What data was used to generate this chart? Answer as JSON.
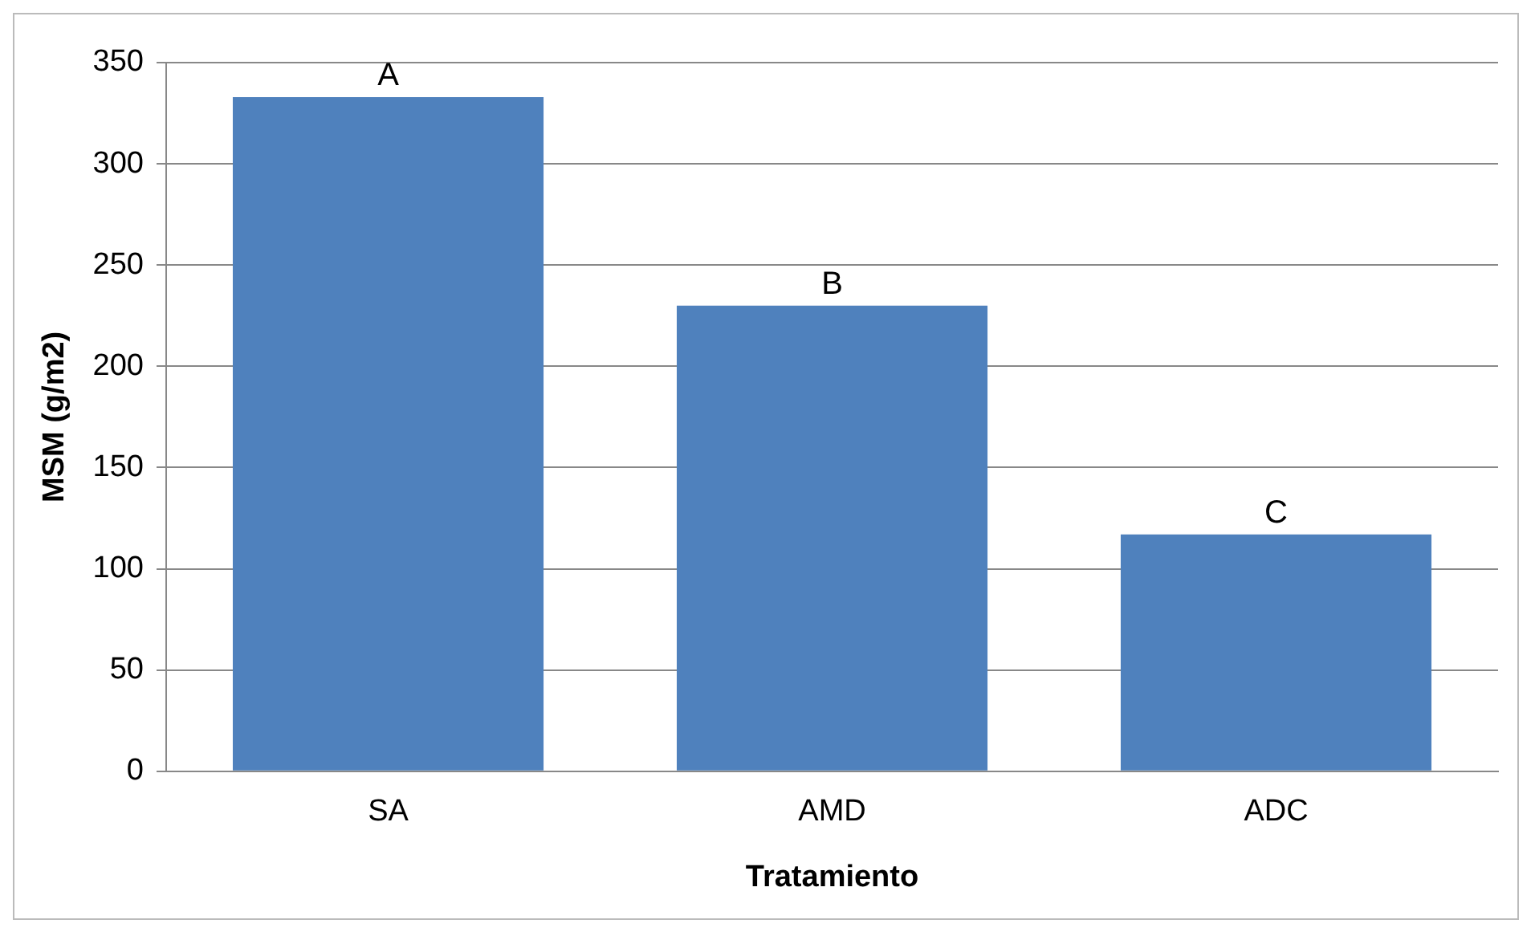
{
  "chart_data": {
    "type": "bar",
    "xlabel": "Tratamiento",
    "ylabel": "MSM (g/m2)",
    "categories": [
      "SA",
      "AMD",
      "ADC"
    ],
    "values": [
      333,
      230,
      117
    ],
    "color": "#4f81bd",
    "ylim": [
      0,
      350
    ],
    "yticks": [
      0,
      50,
      100,
      150,
      200,
      250,
      300,
      350
    ],
    "grid": "y",
    "annotations": [
      {
        "text": "A",
        "x": "SA",
        "y": 333
      },
      {
        "text": "B",
        "x": "AMD",
        "y": 230
      },
      {
        "text": "C",
        "x": "ADC",
        "y": 117
      }
    ]
  }
}
